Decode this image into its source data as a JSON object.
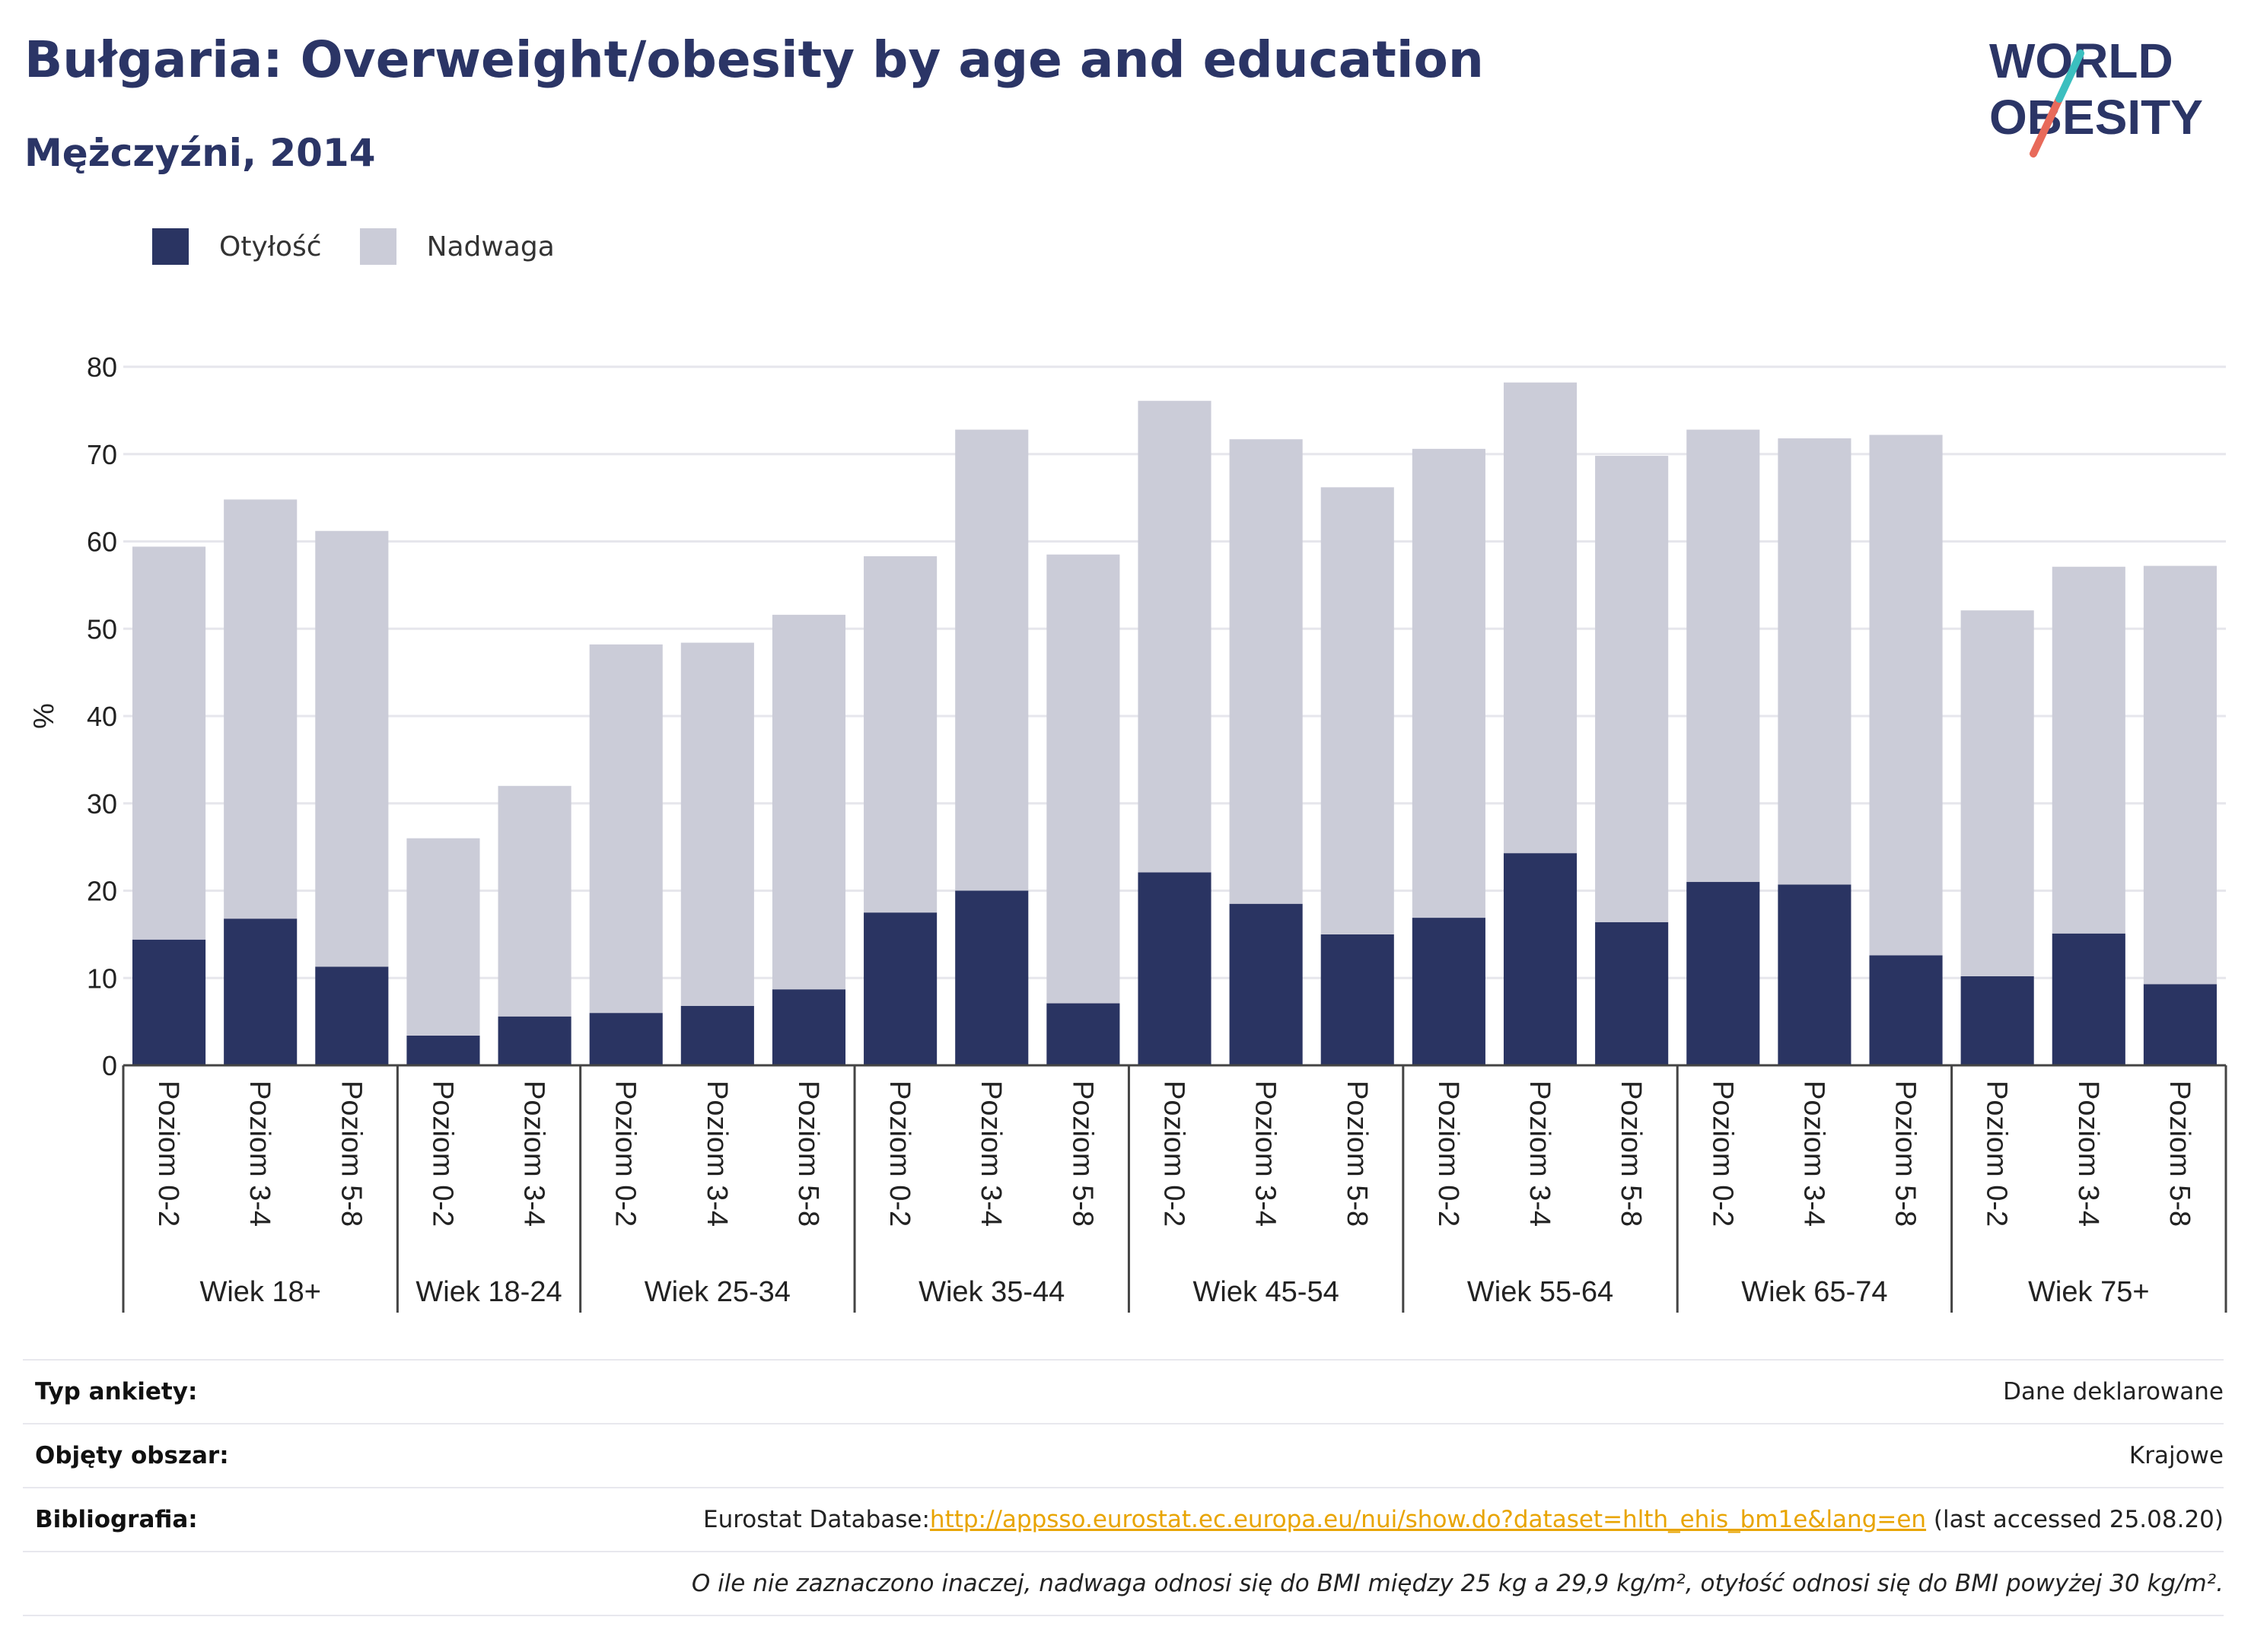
{
  "header": {
    "title": "Bułgaria: Overweight/obesity by age and education",
    "subtitle": "Mężczyźni, 2014",
    "logo_line1": "WORLD",
    "logo_line2": "OBESITY"
  },
  "legend": [
    {
      "label": "Otyłość",
      "color": "#2a3462"
    },
    {
      "label": "Nadwaga",
      "color": "#cbccd8"
    }
  ],
  "chart_data": {
    "type": "bar",
    "stacked": true,
    "ylabel": "%",
    "ylim": [
      0,
      80
    ],
    "yticks": [
      0,
      10,
      20,
      30,
      40,
      50,
      60,
      70,
      80
    ],
    "grid": true,
    "legend_position": "top-left",
    "groups": [
      {
        "label": "Wiek 18+",
        "categories": [
          "Poziom 0-2",
          "Poziom 3-4",
          "Poziom 5-8"
        ]
      },
      {
        "label": "Wiek 18-24",
        "categories": [
          "Poziom 0-2",
          "Poziom 3-4"
        ]
      },
      {
        "label": "Wiek 25-34",
        "categories": [
          "Poziom 0-2",
          "Poziom 3-4",
          "Poziom 5-8"
        ]
      },
      {
        "label": "Wiek 35-44",
        "categories": [
          "Poziom 0-2",
          "Poziom 3-4",
          "Poziom 5-8"
        ]
      },
      {
        "label": "Wiek 45-54",
        "categories": [
          "Poziom 0-2",
          "Poziom 3-4",
          "Poziom 5-8"
        ]
      },
      {
        "label": "Wiek 55-64",
        "categories": [
          "Poziom 0-2",
          "Poziom 3-4",
          "Poziom 5-8"
        ]
      },
      {
        "label": "Wiek 65-74",
        "categories": [
          "Poziom 0-2",
          "Poziom 3-4",
          "Poziom 5-8"
        ]
      },
      {
        "label": "Wiek 75+",
        "categories": [
          "Poziom 0-2",
          "Poziom 3-4",
          "Poziom 5-8"
        ]
      }
    ],
    "series": [
      {
        "name": "Otyłość",
        "color": "#2a3462",
        "values": [
          14.4,
          16.8,
          11.3,
          3.4,
          5.6,
          6.0,
          6.8,
          8.7,
          17.5,
          20.0,
          7.1,
          22.1,
          18.5,
          15.0,
          16.9,
          24.3,
          16.4,
          21.0,
          20.7,
          12.6,
          10.2,
          15.1,
          9.3
        ]
      },
      {
        "name": "Nadwaga",
        "color": "#cbccd8",
        "values": [
          45.0,
          48.0,
          49.9,
          22.6,
          26.4,
          42.2,
          41.6,
          42.9,
          40.8,
          52.8,
          51.4,
          54.0,
          53.2,
          51.2,
          53.7,
          53.9,
          53.4,
          51.8,
          51.1,
          59.6,
          41.9,
          42.0,
          47.9
        ]
      }
    ]
  },
  "footer": {
    "rows": [
      {
        "label": "Typ ankiety:",
        "value": "Dane deklarowane"
      },
      {
        "label": "Objęty obszar:",
        "value": "Krajowe"
      }
    ],
    "bibliography_label": "Bibliografia:",
    "bibliography_prefix": "Eurostat Database:",
    "bibliography_link": "http://appsso.eurostat.ec.europa.eu/nui/show.do?dataset=hlth_ehis_bm1e&lang=en",
    "bibliography_suffix": " (last accessed 25.08.20)",
    "note": "O ile nie zaznaczono inaczej, nadwaga odnosi się do BMI między 25 kg a 29,9 kg/m², otyłość odnosi się do BMI powyżej 30 kg/m²."
  }
}
